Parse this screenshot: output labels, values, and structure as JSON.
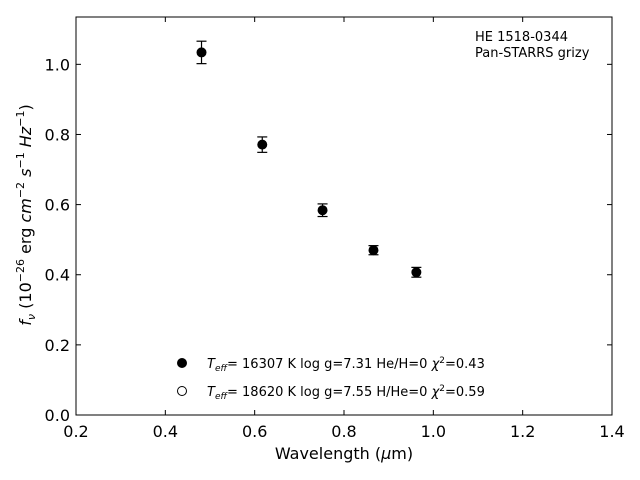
{
  "chart_data": {
    "type": "scatter",
    "annotation": [
      "HE 1518-0344",
      "Pan-STARRS grizy"
    ],
    "xlabel": {
      "main": "Wavelength (",
      "mu": "μ",
      "unit": "m)"
    },
    "ylabel": {
      "f": "f",
      "nu": "ν",
      "open": " (10",
      "e1": "−26",
      "erg": " erg ",
      "cm": "cm",
      "e2": "−2",
      "s": "s",
      "e3": "−1",
      "hz": "Hz",
      "e4": "−1",
      "close": ")"
    },
    "xlim": [
      0.2,
      1.4
    ],
    "ylim": [
      0.0,
      1.135
    ],
    "xticks": [
      "0.2",
      "0.4",
      "0.6",
      "0.8",
      "1.0",
      "1.2",
      "1.4"
    ],
    "yticks": [
      "0.0",
      "0.2",
      "0.4",
      "0.6",
      "0.8",
      "1.0"
    ],
    "series": [
      {
        "marker": "filled-circle",
        "x": [
          0.481,
          0.617,
          0.752,
          0.866,
          0.962
        ],
        "y": [
          1.034,
          0.771,
          0.584,
          0.47,
          0.407
        ],
        "yerr": [
          0.032,
          0.022,
          0.018,
          0.013,
          0.014
        ]
      }
    ],
    "legend": [
      {
        "marker": "filled-circle",
        "T": "T",
        "eff": "eff",
        "rest": "= 16307 K  log g=7.31  He/H=0  ",
        "chi": "χ",
        "sup": "2",
        "chival": "=0.43"
      },
      {
        "marker": "open-circle",
        "T": "T",
        "eff": "eff",
        "rest": "= 18620 K  log g=7.55  H/He=0  ",
        "chi": "χ",
        "sup": "2",
        "chival": "=0.59"
      }
    ],
    "legend_placement": "lower-center",
    "grid": false
  }
}
